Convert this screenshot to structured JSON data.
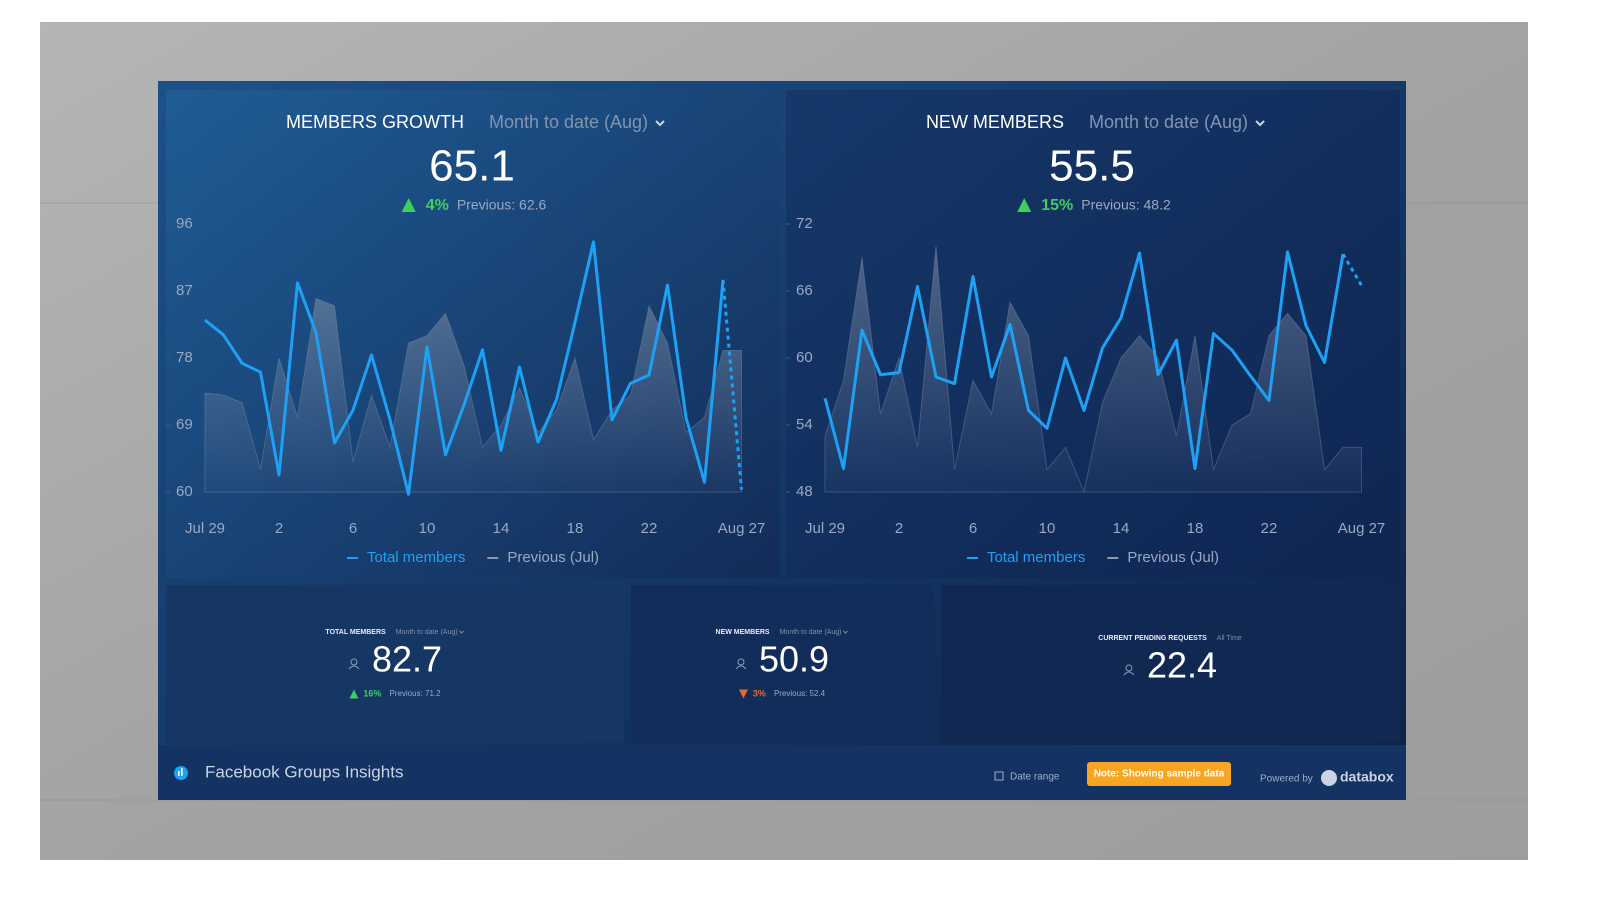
{
  "widgets": [
    {
      "title": "MEMBERS GROWTH",
      "period": "Month to date (Aug)",
      "value": 65.1,
      "change": "4%",
      "direction": "up",
      "previous": "Previous: 62.6",
      "chart": {
        "type": "line",
        "categories": [
          "Jul 29",
          null,
          null,
          null,
          "2",
          null,
          null,
          null,
          "6",
          null,
          null,
          null,
          "10",
          null,
          null,
          null,
          "14",
          null,
          null,
          null,
          "18",
          null,
          null,
          null,
          "22",
          null,
          null,
          null,
          null,
          "Aug 27"
        ],
        "series": [
          {
            "name": "Total members",
            "color": "#1ea0f5",
            "values": [
              83.1,
              81.1,
              77.3,
              76.1,
              62.3,
              88.1,
              81.4,
              66.6,
              71.0,
              78.4,
              69.7,
              59.7,
              79.5,
              65.0,
              71.7,
              79.1,
              65.6,
              76.8,
              66.7,
              72.4,
              82.8,
              93.6,
              69.7,
              74.6,
              75.7,
              87.8,
              70.0,
              61.3,
              88.5,
              60.3
            ]
          },
          {
            "name": "Previous (Jul)",
            "color": "#8d98aa",
            "values": [
              73.3,
              73.0,
              72.0,
              63.0,
              78.0,
              70.0,
              86.0,
              85.0,
              64.0,
              73.0,
              66.0,
              80.0,
              81.0,
              84.0,
              77.0,
              66.0,
              69.0,
              74.0,
              68.0,
              71.0,
              78.0,
              67.0,
              71.0,
              73.0,
              85.0,
              80.0,
              68.0,
              70.0,
              79.0,
              79.0
            ]
          }
        ],
        "ylim": [
          60,
          96
        ],
        "yticks": [
          60,
          69,
          78,
          87,
          96
        ]
      }
    },
    {
      "title": "NEW MEMBERS",
      "period": "Month to date (Aug)",
      "value": 55.5,
      "change": "15%",
      "direction": "up",
      "previous": "Previous: 48.2",
      "chart": {
        "type": "line",
        "categories": [
          "Jul 29",
          null,
          null,
          null,
          "2",
          null,
          null,
          null,
          "6",
          null,
          null,
          null,
          "10",
          null,
          null,
          null,
          "14",
          null,
          null,
          null,
          "18",
          null,
          null,
          null,
          "22",
          null,
          null,
          null,
          null,
          "Aug 27"
        ],
        "series": [
          {
            "name": "Total members",
            "color": "#1ea0f5",
            "values": [
              56.4,
              50.1,
              62.5,
              58.5,
              58.7,
              66.4,
              58.3,
              57.7,
              67.3,
              58.3,
              63.0,
              55.3,
              53.7,
              60.0,
              55.3,
              60.9,
              63.6,
              69.4,
              58.5,
              61.6,
              50.1,
              62.2,
              60.7,
              58.4,
              56.2,
              69.5,
              62.9,
              59.6,
              69.3,
              66.5
            ]
          },
          {
            "name": "Previous (Jul)",
            "color": "#8d98aa",
            "values": [
              53,
              58,
              69,
              55,
              60,
              52,
              70,
              50,
              58,
              55,
              65,
              62,
              50,
              52,
              48,
              56,
              60,
              62,
              60,
              53,
              62,
              50,
              54,
              55,
              62,
              64,
              62,
              50,
              52,
              52
            ]
          }
        ],
        "ylim": [
          48,
          72
        ],
        "yticks": [
          48,
          54,
          60,
          66,
          72
        ]
      }
    }
  ],
  "tiles": [
    {
      "title": "TOTAL MEMBERS",
      "period": "Month to date (Aug)",
      "value": 82.7,
      "change": "16%",
      "direction": "up",
      "previous": "Previous: 71.2"
    },
    {
      "title": "NEW MEMBERS",
      "period": "Month to date (Aug)",
      "value": 50.9,
      "change": "3%",
      "direction": "down",
      "previous": "Previous: 52.4"
    },
    {
      "title": "CURRENT PENDING REQUESTS",
      "period": "All Time",
      "value": 22.4
    }
  ],
  "footer": {
    "title": "Facebook Groups Insights",
    "date_range": "Date range",
    "note": "Note: Showing sample data",
    "powered_by": "Powered by",
    "brand": "databox"
  }
}
